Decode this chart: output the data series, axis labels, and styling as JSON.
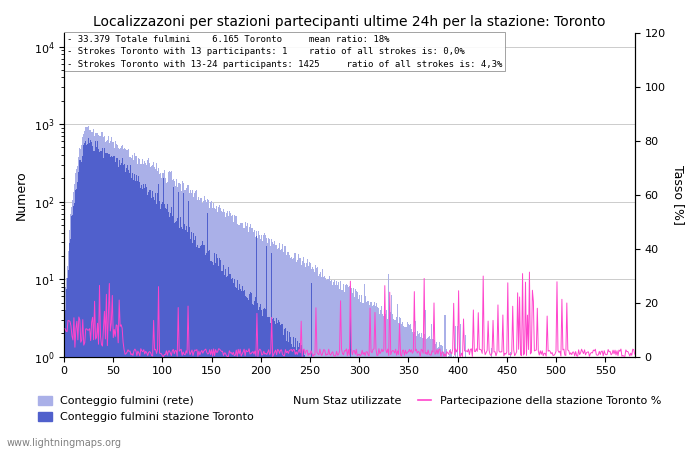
{
  "title": "Localizzazoni per stazioni partecipanti ultime 24h per la stazione: Toronto",
  "ylabel_left": "Numero",
  "ylabel_right": "Tasso [%]",
  "annotation_lines": [
    "33.379 Totale fulmini    6.165 Toronto     mean ratio: 18%",
    "Strokes Toronto with 13 participants: 1    ratio of all strokes is: 0,0%",
    "Strokes Toronto with 13-24 participants: 1425     ratio of all strokes is: 4,3%"
  ],
  "legend_labels": [
    "Conteggio fulmini (rete)",
    "Conteggio fulmini stazione Toronto",
    "Num Staz utilizzate",
    "Partecipazione della stazione Toronto %"
  ],
  "colors": {
    "bar_network": "#aab0e8",
    "bar_toronto": "#5060cc",
    "line_participation": "#ff44cc",
    "grid": "#cccccc"
  },
  "watermark": "www.lightningmaps.org",
  "xlim": [
    0,
    580
  ],
  "ylim_right": [
    0,
    120
  ],
  "xticks": [
    0,
    50,
    100,
    150,
    200,
    250,
    300,
    350,
    400,
    450,
    500,
    550
  ],
  "yticks_right": [
    0,
    20,
    40,
    60,
    80,
    100,
    120
  ]
}
